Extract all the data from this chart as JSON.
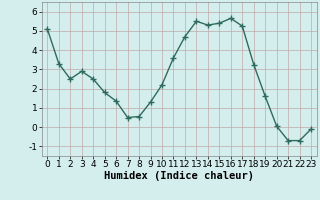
{
  "x": [
    0,
    1,
    2,
    3,
    4,
    5,
    6,
    7,
    8,
    9,
    10,
    11,
    12,
    13,
    14,
    15,
    16,
    17,
    18,
    19,
    20,
    21,
    22,
    23
  ],
  "y": [
    5.1,
    3.3,
    2.5,
    2.9,
    2.5,
    1.8,
    1.35,
    0.5,
    0.55,
    1.3,
    2.2,
    3.6,
    4.7,
    5.5,
    5.3,
    5.4,
    5.65,
    5.25,
    3.25,
    1.6,
    0.05,
    -0.7,
    -0.7,
    -0.1
  ],
  "line_color": "#2e6b5e",
  "marker": "+",
  "marker_size": 4,
  "line_width": 1.0,
  "bg_color": "#d4eeee",
  "grid_color": "#c0a8a8",
  "xlabel": "Humidex (Indice chaleur)",
  "xlim": [
    -0.5,
    23.5
  ],
  "ylim": [
    -1.5,
    6.5
  ],
  "yticks": [
    -1,
    0,
    1,
    2,
    3,
    4,
    5,
    6
  ],
  "xticks": [
    0,
    1,
    2,
    3,
    4,
    5,
    6,
    7,
    8,
    9,
    10,
    11,
    12,
    13,
    14,
    15,
    16,
    17,
    18,
    19,
    20,
    21,
    22,
    23
  ],
  "tick_fontsize": 6.5,
  "xlabel_fontsize": 7.5
}
